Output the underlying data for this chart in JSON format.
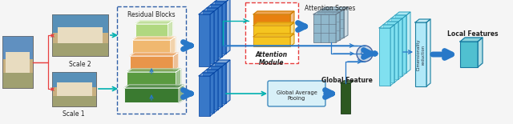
{
  "bg_color": "#f5f5f5",
  "colors": {
    "arrow_blue": "#2878c8",
    "arrow_teal": "#00b0b0",
    "arrow_red": "#e84040",
    "block_green_dark": "#3a7a30",
    "block_green_mid": "#5a9a40",
    "block_orange_dark": "#e8954a",
    "block_orange_light": "#f0b870",
    "block_green_light": "#b0d880",
    "attention_yellow": "#f5c520",
    "attention_orange": "#e88010",
    "feature_blue": "#3878c8",
    "feature_cyan": "#40c8e0",
    "feature_cyan_light": "#80e0f0",
    "global_feat_dark_green": "#2d5820",
    "local_feat_cyan": "#50c0d0",
    "dim_reduction_cyan": "#b0e8f8",
    "attention_scores_color": "#90b8cc",
    "dashed_border": "#3060a8",
    "multiply_circle": "#c8d8e8",
    "gap_fill": "#d8f0f8",
    "gap_border": "#3080b8"
  },
  "labels": {
    "scale2": "Scale 2",
    "scale1": "Scale 1",
    "residual_blocks": "Residual Blocks",
    "attention_module": "Attention\nModule",
    "attention_scores": "Attention Scores",
    "global_avg_pooling": "Global Average\nPooing",
    "global_feature": "Global Feature",
    "dimensionality_reduction": "Dimensionality\nreduction",
    "local_features": "Local Features"
  }
}
